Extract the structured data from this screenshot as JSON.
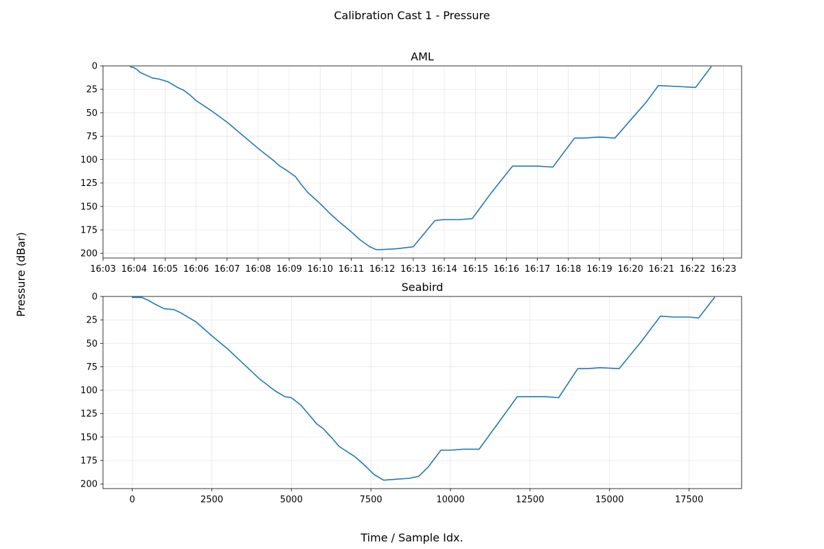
{
  "figure_title": "Calibration Cast 1 - Pressure",
  "shared_ylabel": "Pressure (dBar)",
  "shared_xlabel": "Time / Sample Idx.",
  "colors": {
    "series": "#1f77b4"
  },
  "chart_data": [
    {
      "type": "line",
      "title": "AML",
      "grid": true,
      "y_inverted": true,
      "ylim": [
        205,
        0
      ],
      "yticks": [
        0,
        25,
        50,
        75,
        100,
        125,
        150,
        175,
        200
      ],
      "xlim": [
        "16:03:00",
        "16:23:35"
      ],
      "xticks": [
        "16:03",
        "16:04",
        "16:05",
        "16:06",
        "16:07",
        "16:08",
        "16:09",
        "16:10",
        "16:11",
        "16:12",
        "16:13",
        "16:14",
        "16:15",
        "16:16",
        "16:17",
        "16:18",
        "16:19",
        "16:20",
        "16:21",
        "16:22",
        "16:23"
      ],
      "series": [
        {
          "x": [
            "16:03:53",
            "16:04:00",
            "16:04:06",
            "16:04:12",
            "16:04:24",
            "16:04:36",
            "16:04:48",
            "16:04:54",
            "16:05:06",
            "16:05:24",
            "16:05:36",
            "16:05:48",
            "16:06:00",
            "16:06:30",
            "16:07:00",
            "16:07:30",
            "16:08:00",
            "16:08:30",
            "16:08:42",
            "16:08:54",
            "16:09:12",
            "16:09:24",
            "16:09:36",
            "16:10:00",
            "16:10:18",
            "16:10:36",
            "16:11:00",
            "16:11:18",
            "16:11:36",
            "16:11:48",
            "16:12:00",
            "16:12:30",
            "16:13:00",
            "16:13:42",
            "16:14:00",
            "16:14:30",
            "16:14:54",
            "16:15:30",
            "16:16:12",
            "16:16:30",
            "16:17:00",
            "16:17:30",
            "16:18:12",
            "16:18:30",
            "16:19:00",
            "16:19:30",
            "16:20:00",
            "16:20:30",
            "16:20:54",
            "16:21:30",
            "16:22:06",
            "16:22:36"
          ],
          "y": [
            1,
            2,
            4,
            7,
            10,
            13,
            14,
            15,
            17,
            23,
            26,
            31,
            37,
            48,
            60,
            74,
            88,
            101,
            107,
            111,
            118,
            127,
            135,
            147,
            157,
            166,
            177,
            186,
            193,
            196,
            196,
            195,
            193,
            165,
            164,
            164,
            163,
            136,
            107,
            107,
            107,
            108,
            77,
            77,
            76,
            77,
            58,
            39,
            21,
            22,
            23,
            1
          ]
        }
      ]
    },
    {
      "type": "line",
      "title": "Seabird",
      "grid": true,
      "y_inverted": true,
      "ylim": [
        205,
        0
      ],
      "yticks": [
        0,
        25,
        50,
        75,
        100,
        125,
        150,
        175,
        200
      ],
      "xlim": [
        -920,
        19150
      ],
      "xticks": [
        0,
        2500,
        5000,
        7500,
        10000,
        12500,
        15000,
        17500
      ],
      "series": [
        {
          "x": [
            0,
            300,
            500,
            700,
            1000,
            1300,
            1500,
            1800,
            2000,
            2500,
            3000,
            3500,
            4000,
            4500,
            4800,
            5000,
            5300,
            5500,
            5800,
            6000,
            6300,
            6500,
            7000,
            7300,
            7600,
            7900,
            8300,
            8700,
            9000,
            9300,
            9700,
            10000,
            10400,
            10900,
            11500,
            12100,
            12500,
            13000,
            13400,
            14000,
            14300,
            14700,
            15300,
            16000,
            16600,
            17000,
            17500,
            17800,
            18300
          ],
          "y": [
            1,
            1,
            4,
            8,
            13,
            14,
            17,
            23,
            27,
            42,
            56,
            72,
            88,
            101,
            107,
            108,
            116,
            124,
            136,
            141,
            152,
            160,
            171,
            180,
            190,
            196,
            195,
            194,
            192,
            182,
            164,
            164,
            163,
            163,
            135,
            107,
            107,
            107,
            108,
            77,
            77,
            76,
            77,
            48,
            21,
            22,
            22,
            23,
            1
          ]
        }
      ]
    }
  ]
}
